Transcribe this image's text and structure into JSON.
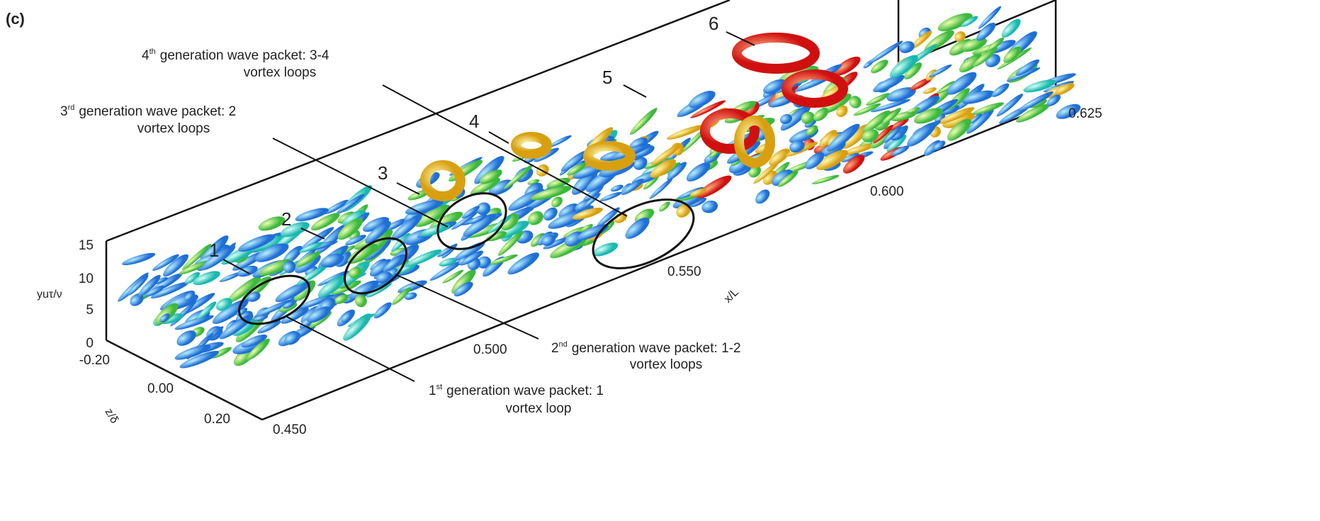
{
  "panel_label": "(c)",
  "structure_labels": [
    "1",
    "2",
    "3",
    "4",
    "5",
    "6"
  ],
  "annotations": [
    {
      "number": "4",
      "suffix": "th",
      "line1": "generation wave packet: 3-4",
      "line2": "vortex loops"
    },
    {
      "number": "3",
      "suffix": "rd",
      "line1": "generation wave packet: 2",
      "line2": "vortex loops"
    },
    {
      "number": "2",
      "suffix": "nd",
      "line1": "generation wave packet: 1-2",
      "line2": "vortex loops"
    },
    {
      "number": "1",
      "suffix": "st",
      "line1": "generation wave packet: 1",
      "line2": "vortex loop"
    }
  ],
  "axes": {
    "y": {
      "label": "yuτ/ν",
      "ticks": [
        "0",
        "5",
        "10",
        "15"
      ]
    },
    "z": {
      "label": "z/δ",
      "ticks": [
        "-0.20",
        "0.00",
        "0.20"
      ]
    },
    "x": {
      "label": "x/L",
      "ticks": [
        "0.450",
        "0.500",
        "0.550",
        "0.600",
        "0.625"
      ]
    }
  }
}
